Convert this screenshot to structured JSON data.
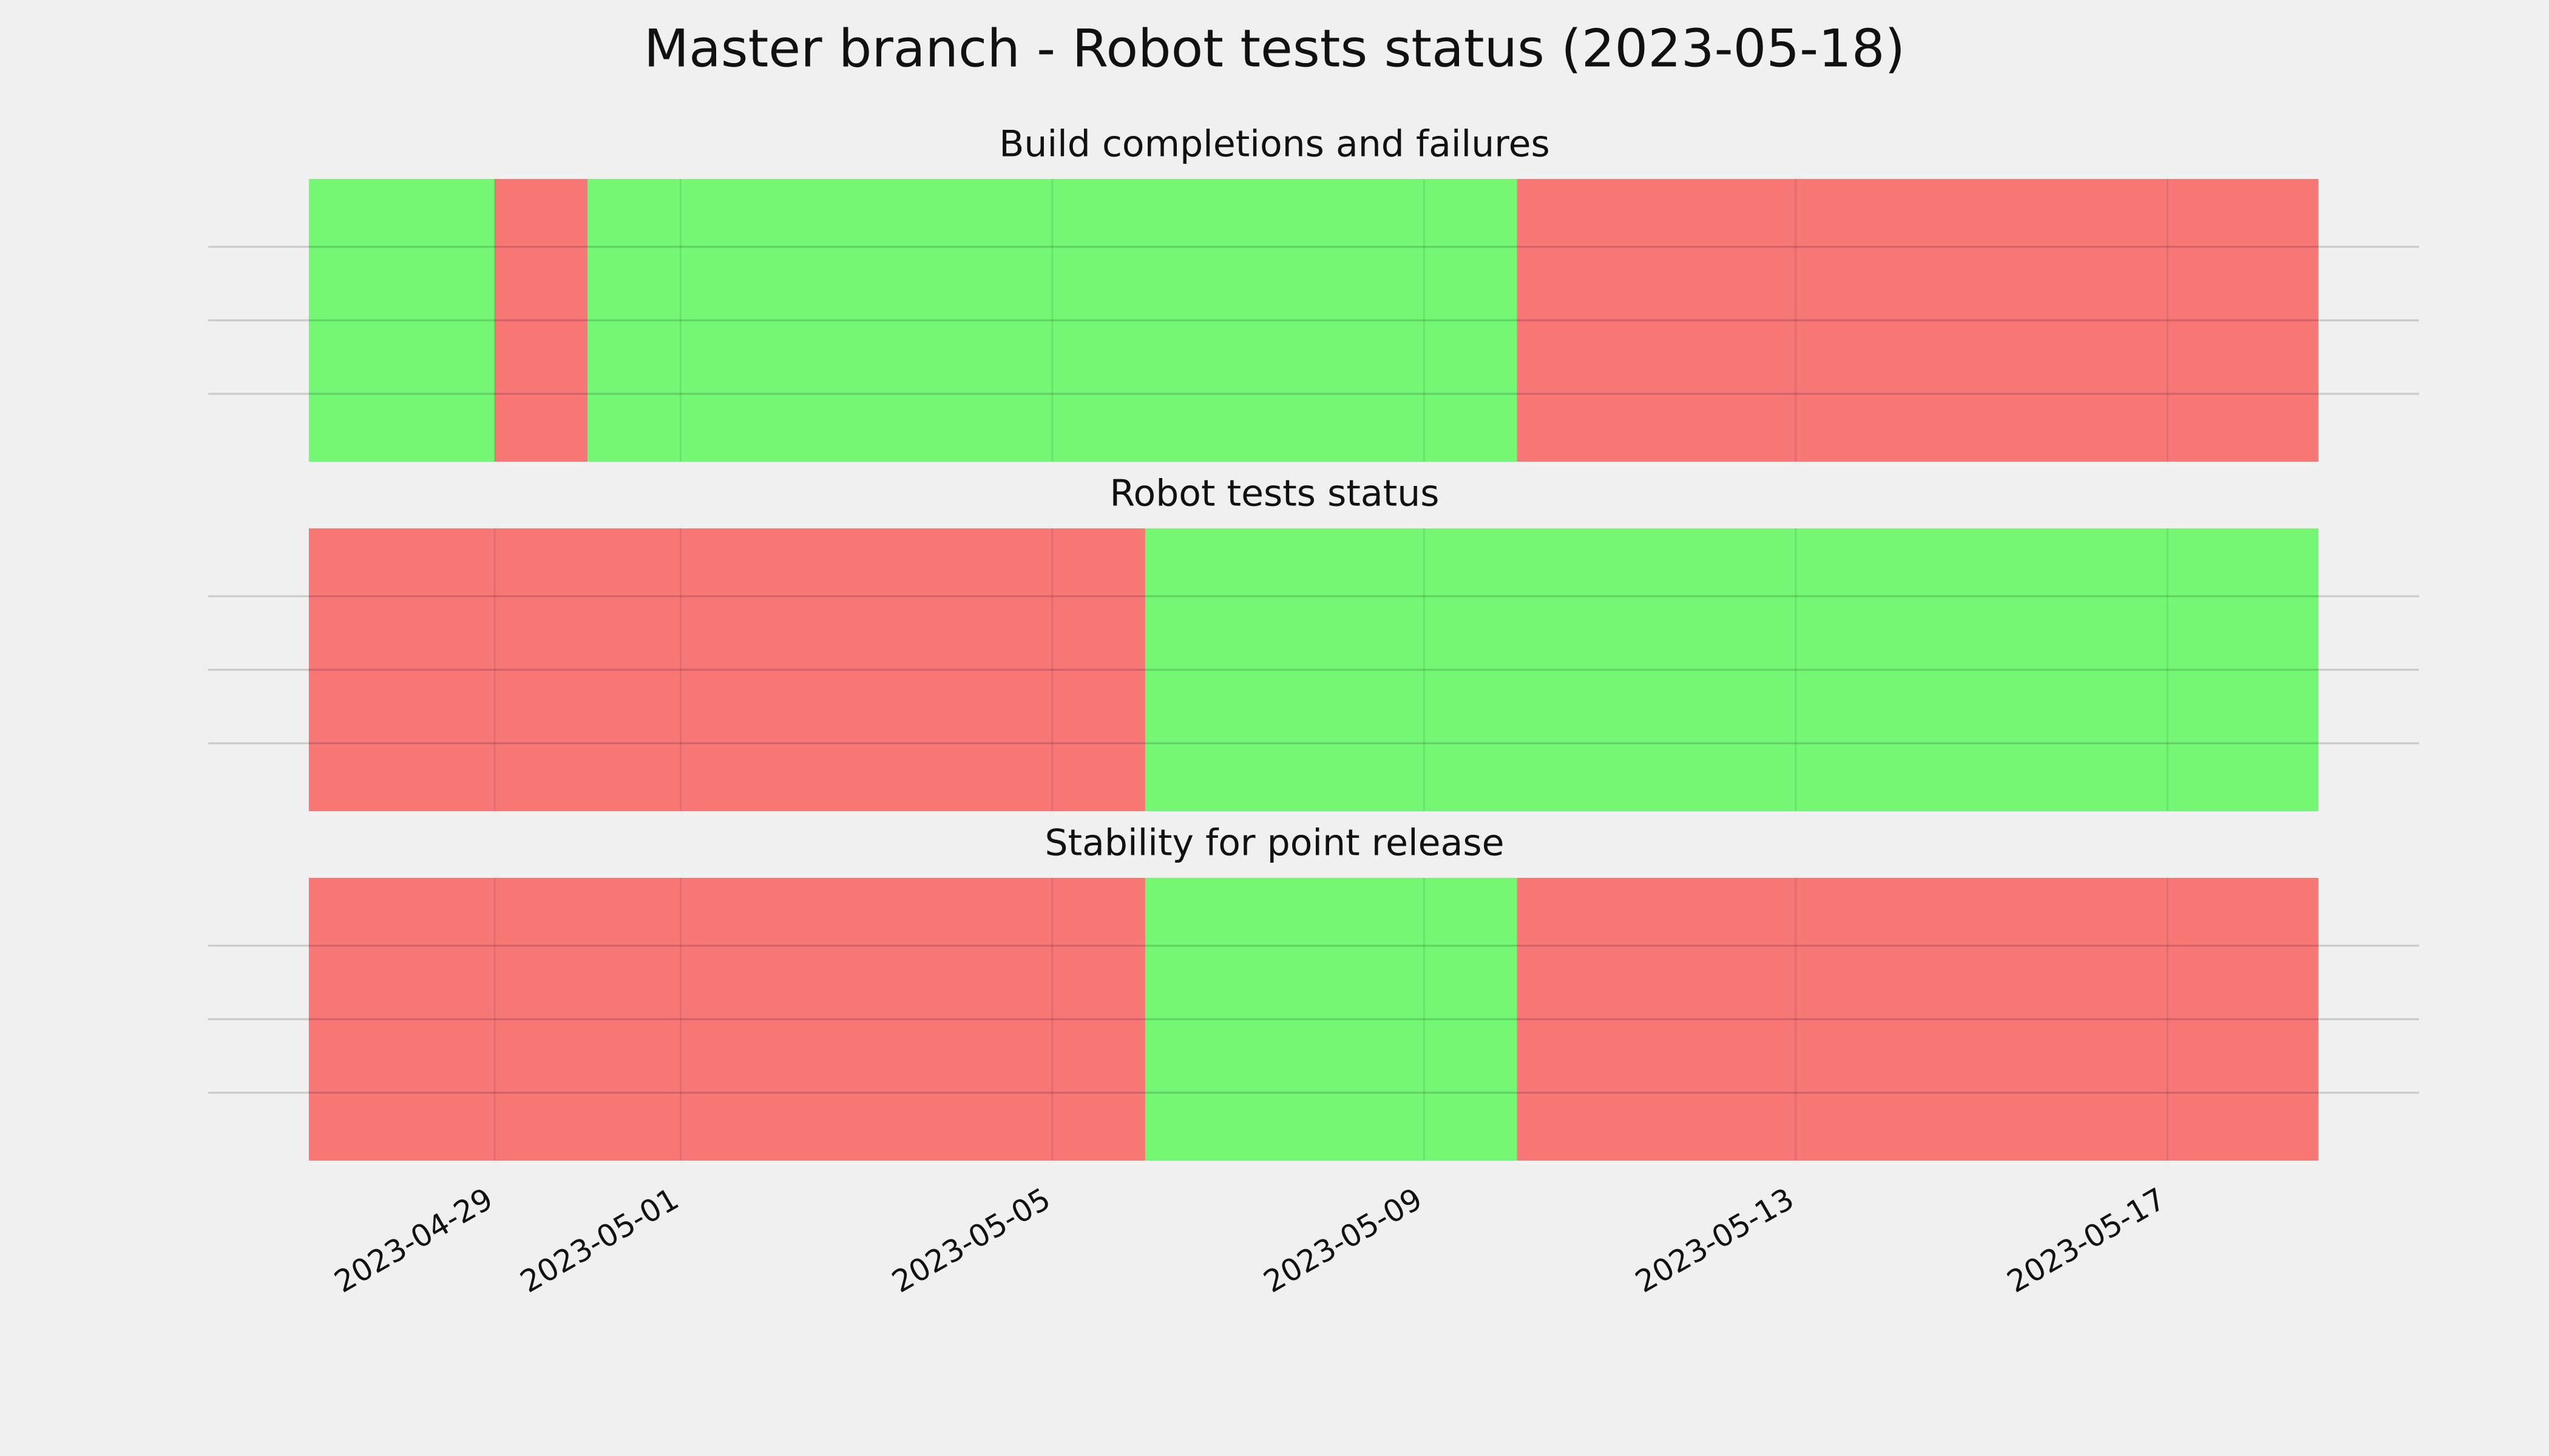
{
  "title": "Master branch - Robot tests status (2023-05-18)",
  "chart_data": [
    {
      "type": "timeline",
      "title": "Build completions and failures",
      "xlim": [
        "2023-04-25T22:00",
        "2023-05-19T17:00"
      ],
      "ylim": [
        0,
        1
      ],
      "yticks": [
        0.24,
        0.5,
        0.76
      ],
      "grid": true,
      "xticks": [
        "2023-04-29",
        "2023-05-01",
        "2023-05-05",
        "2023-05-09",
        "2023-05-13",
        "2023-05-17"
      ],
      "spans": [
        {
          "start": "2023-04-27",
          "end": "2023-04-29",
          "color": "#74f774"
        },
        {
          "start": "2023-04-29",
          "end": "2023-04-30",
          "color": "#f77777"
        },
        {
          "start": "2023-04-30",
          "end": "2023-05-10",
          "color": "#74f774"
        },
        {
          "start": "2023-05-10",
          "end": "2023-05-18T15:00",
          "color": "#f77777"
        }
      ]
    },
    {
      "type": "timeline",
      "title": "Robot tests status",
      "xlim": [
        "2023-04-25T22:00",
        "2023-05-19T17:00"
      ],
      "ylim": [
        0,
        1
      ],
      "yticks": [
        0.24,
        0.5,
        0.76
      ],
      "grid": true,
      "xticks": [
        "2023-04-29",
        "2023-05-01",
        "2023-05-05",
        "2023-05-09",
        "2023-05-13",
        "2023-05-17"
      ],
      "spans": [
        {
          "start": "2023-04-27",
          "end": "2023-05-06",
          "color": "#f77777"
        },
        {
          "start": "2023-05-06",
          "end": "2023-05-18T15:00",
          "color": "#74f774"
        }
      ]
    },
    {
      "type": "timeline",
      "title": "Stability for point release",
      "xlim": [
        "2023-04-25T22:00",
        "2023-05-19T17:00"
      ],
      "ylim": [
        0,
        1
      ],
      "yticks": [
        0.24,
        0.5,
        0.76
      ],
      "grid": true,
      "xticks": [
        "2023-04-29",
        "2023-05-01",
        "2023-05-05",
        "2023-05-09",
        "2023-05-13",
        "2023-05-17"
      ],
      "spans": [
        {
          "start": "2023-04-27",
          "end": "2023-05-06",
          "color": "#f77777"
        },
        {
          "start": "2023-05-06",
          "end": "2023-05-10",
          "color": "#74f774"
        },
        {
          "start": "2023-05-10",
          "end": "2023-05-18T15:00",
          "color": "#f77777"
        }
      ]
    }
  ]
}
